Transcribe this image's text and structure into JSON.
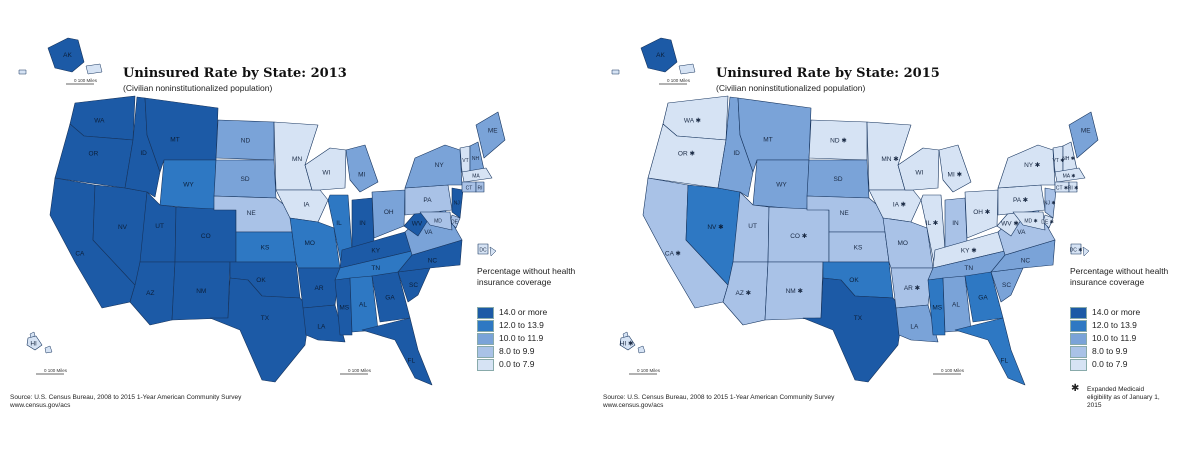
{
  "colors": {
    "c1": "#1c5aa6",
    "c2": "#2e78c3",
    "c3": "#7aa3d8",
    "c4": "#a9c2e7",
    "c5": "#d6e3f4",
    "stroke": "#16345e"
  },
  "maps": [
    {
      "title": "Uninsured Rate by State: 2013",
      "subtitle": "(Civilian noninstitutionalized population)",
      "legend_title": "Percentage without health insurance coverage",
      "legend": [
        "14.0 or more",
        "12.0 to 13.9",
        "10.0 to 11.9",
        "8.0 to 9.9",
        "0.0 to 7.9"
      ],
      "source_line1": "Source: U.S. Census Bureau, 2008 to 2015 1-Year American Community Survey",
      "source_line2": "www.census.gov/acs",
      "scale_label": "100 Miles",
      "states": {
        "WA": 1,
        "OR": 1,
        "ID": 1,
        "MT": 1,
        "WY": 2,
        "NV": 1,
        "CA": 1,
        "UT": 1,
        "CO": 1,
        "AZ": 1,
        "NM": 1,
        "TX": 1,
        "ND": 3,
        "SD": 3,
        "NE": 4,
        "KS": 2,
        "OK": 1,
        "MN": 5,
        "IA": 5,
        "MO": 2,
        "AR": 1,
        "LA": 1,
        "WI": 5,
        "IL": 2,
        "MI": 3,
        "IN": 1,
        "OH": 3,
        "KY": 1,
        "TN": 2,
        "MS": 1,
        "AL": 2,
        "GA": 1,
        "FL": 1,
        "SC": 1,
        "NC": 1,
        "VA": 3,
        "WV": 1,
        "PA": 4,
        "NY": 3,
        "NJ": 1,
        "DE": 4,
        "MD": 4,
        "DC": 5,
        "VT": 5,
        "NH": 3,
        "ME": 3,
        "MA": 5,
        "CT": 4,
        "RI": 4,
        "AK": 1,
        "HI": 5
      },
      "stars": []
    },
    {
      "title": "Uninsured Rate by State: 2015",
      "subtitle": "(Civilian noninstitutionalized population)",
      "legend_title": "Percentage without health insurance coverage",
      "legend": [
        "14.0 or more",
        "12.0 to 13.9",
        "10.0 to 11.9",
        "8.0 to 9.9",
        "0.0 to 7.9"
      ],
      "source_line1": "Source: U.S. Census Bureau, 2008 to 2015 1-Year American Community Survey",
      "source_line2": "www.census.gov/acs",
      "scale_label": "100 Miles",
      "expanded_note": "Expanded Medicaid eligibility as of January 1, 2015",
      "states": {
        "WA": 5,
        "OR": 5,
        "ID": 3,
        "MT": 3,
        "WY": 3,
        "NV": 2,
        "CA": 4,
        "UT": 4,
        "CO": 4,
        "AZ": 4,
        "NM": 4,
        "TX": 1,
        "ND": 5,
        "SD": 3,
        "NE": 4,
        "KS": 4,
        "OK": 2,
        "MN": 5,
        "IA": 5,
        "MO": 4,
        "AR": 4,
        "LA": 3,
        "WI": 5,
        "IL": 5,
        "MI": 5,
        "IN": 4,
        "OH": 5,
        "KY": 5,
        "TN": 3,
        "MS": 2,
        "AL": 3,
        "GA": 2,
        "FL": 2,
        "SC": 3,
        "NC": 3,
        "VA": 4,
        "WV": 5,
        "PA": 5,
        "NY": 5,
        "NJ": 4,
        "DE": 5,
        "MD": 5,
        "DC": 5,
        "VT": 5,
        "NH": 5,
        "ME": 3,
        "MA": 5,
        "CT": 5,
        "RI": 5,
        "AK": 1,
        "HI": 5
      },
      "stars": [
        "WA",
        "OR",
        "CA",
        "NV",
        "AZ",
        "NM",
        "CO",
        "ND",
        "MN",
        "IA",
        "AR",
        "IL",
        "MI",
        "OH",
        "KY",
        "WV",
        "PA",
        "NY",
        "NH",
        "CT",
        "RI",
        "MA",
        "VT",
        "DE",
        "MD",
        "DC",
        "HI",
        "NJ"
      ]
    }
  ]
}
